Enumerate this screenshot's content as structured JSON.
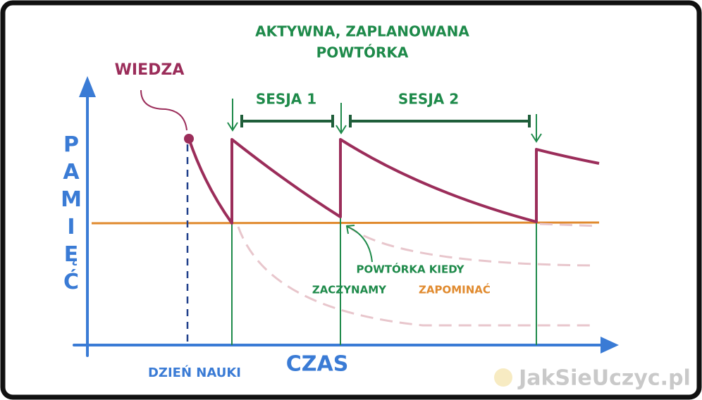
{
  "title": {
    "lines": [
      "AKTYWNA, ZAPLANOWANA",
      "POWTÓRKA"
    ]
  },
  "labels": {
    "knowledge": "WIEDZA",
    "session1": "SESJA 1",
    "session2": "SESJA 2",
    "y_axis": "PAMIĘĆ",
    "x_axis": "CZAS",
    "study_day": "DZIEŃ NAUKI"
  },
  "note": {
    "line1": "POWTÓRKA KIEDY",
    "line2_start": "ZACZYNAMY",
    "line2_end": "ZAPOMINAĆ"
  },
  "watermark": "JakSieUczyc.pl"
}
